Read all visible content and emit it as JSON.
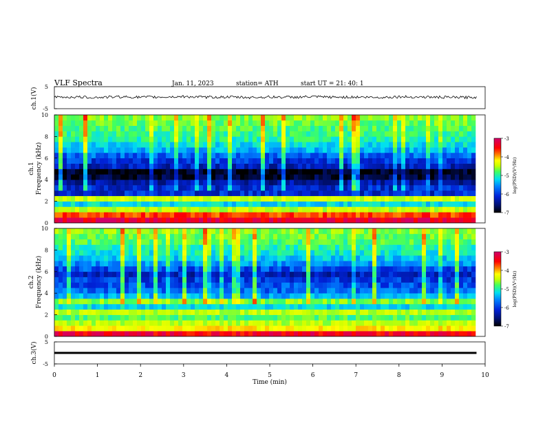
{
  "header": {
    "title": "VLF  Spectra",
    "date": "Jan.  11,  2023",
    "station": "station= ATH",
    "start": "start  UT  =   21: 40: 1"
  },
  "colors": {
    "colormap": [
      "#000000",
      "#001070",
      "#0022d8",
      "#0080ff",
      "#00e0f0",
      "#40ff60",
      "#c8ff00",
      "#ffff00",
      "#ff8000",
      "#ff0000",
      "#d0006a"
    ],
    "trace": "#000000"
  },
  "chart_data": [
    {
      "type": "line",
      "panel": "ch1-waveform",
      "ylabel": "ch.1(V)",
      "ylim": [
        -5,
        5
      ],
      "yticks": [
        "5",
        "-5"
      ],
      "x": [
        0,
        0.5,
        1,
        1.5,
        2,
        2.5,
        3,
        3.5,
        4,
        4.5,
        5,
        5.5,
        6,
        6.5,
        7,
        7.5,
        8,
        8.5,
        9,
        9.5,
        9.8
      ],
      "values": [
        0.2,
        0.3,
        0.1,
        0.4,
        0.2,
        0.3,
        0.5,
        0.2,
        0.3,
        0.1,
        0.3,
        0.2,
        0.4,
        0.2,
        0.3,
        0.1,
        0.4,
        0.3,
        0.2,
        0.1,
        0.2
      ]
    },
    {
      "type": "heatmap",
      "panel": "ch1-spectrogram",
      "ylabel": "ch.1\nFrequency  (kHz)",
      "ylim": [
        0,
        10
      ],
      "yticks": [
        "0",
        "2",
        "4",
        "6",
        "8",
        "10"
      ],
      "xlim": [
        0,
        9.8
      ],
      "colorbar": {
        "label": "log(PSD)(V²/Hz)",
        "ticks": [
          "-3",
          "-4",
          "-5",
          "-6",
          "-7"
        ],
        "range": [
          -7,
          -3
        ]
      },
      "rows": [
        {
          "f": 0.0,
          "psd": -3.2
        },
        {
          "f": 0.5,
          "psd": -3.6
        },
        {
          "f": 1.0,
          "psd": -4.6
        },
        {
          "f": 1.5,
          "psd": -5.4
        },
        {
          "f": 2.0,
          "psd": -4.5
        },
        {
          "f": 2.5,
          "psd": -6.2
        },
        {
          "f": 3.0,
          "psd": -6.2
        },
        {
          "f": 3.5,
          "psd": -6.4
        },
        {
          "f": 4.0,
          "psd": -6.8
        },
        {
          "f": 4.5,
          "psd": -6.9
        },
        {
          "f": 5.0,
          "psd": -6.3
        },
        {
          "f": 5.5,
          "psd": -6.1
        },
        {
          "f": 6.0,
          "psd": -5.9
        },
        {
          "f": 6.5,
          "psd": -5.6
        },
        {
          "f": 7.0,
          "psd": -5.4
        },
        {
          "f": 7.5,
          "psd": -5.2
        },
        {
          "f": 8.0,
          "psd": -5.1
        },
        {
          "f": 8.5,
          "psd": -5.0
        },
        {
          "f": 9.0,
          "psd": -4.9
        },
        {
          "f": 9.5,
          "psd": -4.8
        }
      ]
    },
    {
      "type": "heatmap",
      "panel": "ch2-spectrogram",
      "ylabel": "ch.2\nFrequency  (kHz)",
      "ylim": [
        0,
        10
      ],
      "yticks": [
        "0",
        "2",
        "4",
        "6",
        "8",
        "10"
      ],
      "xlim": [
        0,
        9.8
      ],
      "colorbar": {
        "label": "log(PSD)(V²/Hz)",
        "ticks": [
          "-3",
          "-4",
          "-5",
          "-6",
          "-7"
        ],
        "range": [
          -7,
          -3
        ]
      },
      "rows": [
        {
          "f": 0.0,
          "psd": -3.3
        },
        {
          "f": 0.5,
          "psd": -4.2
        },
        {
          "f": 1.0,
          "psd": -4.6
        },
        {
          "f": 1.5,
          "psd": -5.0
        },
        {
          "f": 2.0,
          "psd": -4.6
        },
        {
          "f": 2.5,
          "psd": -5.4
        },
        {
          "f": 3.0,
          "psd": -4.8
        },
        {
          "f": 3.5,
          "psd": -5.6
        },
        {
          "f": 4.0,
          "psd": -5.9
        },
        {
          "f": 4.5,
          "psd": -6.0
        },
        {
          "f": 5.0,
          "psd": -6.1
        },
        {
          "f": 5.5,
          "psd": -6.3
        },
        {
          "f": 6.0,
          "psd": -6.0
        },
        {
          "f": 6.5,
          "psd": -5.7
        },
        {
          "f": 7.0,
          "psd": -5.5
        },
        {
          "f": 7.5,
          "psd": -5.3
        },
        {
          "f": 8.0,
          "psd": -5.2
        },
        {
          "f": 8.5,
          "psd": -5.0
        },
        {
          "f": 9.0,
          "psd": -4.9
        },
        {
          "f": 9.5,
          "psd": -4.8
        }
      ]
    },
    {
      "type": "line",
      "panel": "ch3-waveform",
      "ylabel": "ch.3(V)",
      "ylim": [
        -5,
        5
      ],
      "yticks": [
        "5",
        "-5"
      ],
      "x": [
        0,
        9.8
      ],
      "values": [
        0,
        0
      ]
    }
  ],
  "xaxis": {
    "label": "Time  (min)",
    "ticks": [
      "0",
      "1",
      "2",
      "3",
      "4",
      "5",
      "6",
      "7",
      "8",
      "9",
      "10"
    ],
    "xlim": [
      0,
      10
    ]
  }
}
